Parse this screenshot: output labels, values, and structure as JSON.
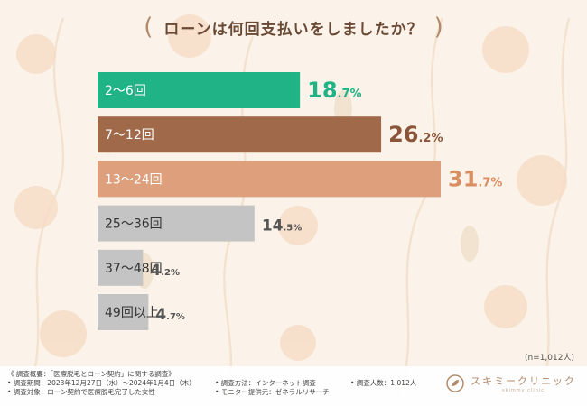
{
  "header": {
    "title": "ローンは何回支払いをしましたか？",
    "paren_left": "(",
    "paren_right": ")"
  },
  "chart_data": {
    "type": "bar",
    "orientation": "horizontal",
    "categories": [
      "2〜6回",
      "7〜12回",
      "13〜24回",
      "25〜36回",
      "37〜48回",
      "49回以上"
    ],
    "values": [
      18.7,
      26.2,
      31.7,
      14.5,
      4.2,
      4.7
    ],
    "value_labels": [
      {
        "int": "18",
        "dec": ".7%"
      },
      {
        "int": "26",
        "dec": ".2%"
      },
      {
        "int": "31",
        "dec": ".7%"
      },
      {
        "int": "14",
        "dec": ".5%"
      },
      {
        "int": "4",
        "dec": ".2%"
      },
      {
        "int": "4",
        "dec": ".7%"
      }
    ],
    "colors": [
      "#1fb386",
      "#a0694a",
      "#dea07c",
      "#c4c4c4",
      "#c4c4c4",
      "#c4c4c4"
    ],
    "value_colors": [
      "#1fb386",
      "#8a5538",
      "#d98e62",
      "#555555",
      "#555555",
      "#555555"
    ],
    "label_colors": [
      "#ffffff",
      "#ffffff",
      "#ffffff",
      "#333333",
      "#333333",
      "#333333"
    ],
    "title": "ローンは何回支払いをしましたか？",
    "xlabel": "",
    "ylabel": "",
    "xlim": [
      0,
      31.7
    ]
  },
  "sample_size": "(n=1,012人)",
  "footer": {
    "notes": [
      "《 調査概要：「医療脱毛とローン契約」に関する調査》",
      "• 調査期間：2023年12月27日（水）〜2024年1月4日（木）",
      "• 調査対象：ローン契約で医療脱毛完了した女性",
      "• 調査方法：インターネット調査",
      "• モニター提供元：ゼネラルリサーチ",
      "• 調査人数：1,012人"
    ],
    "logo_text": "スキミークリニック",
    "logo_sub": "skimmy clinic"
  }
}
